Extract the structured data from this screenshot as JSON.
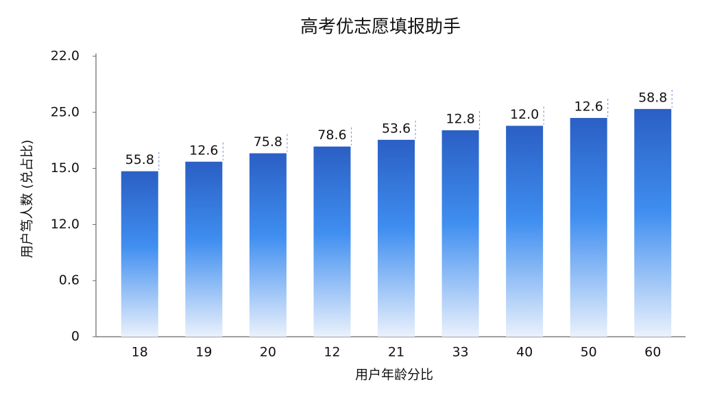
{
  "chart_data": {
    "type": "bar",
    "title": "高考优志愿填报助手",
    "x_label": "用户年龄分比",
    "y_label": "用户笃人数 (兑占比)",
    "categories": [
      "18",
      "19",
      "20",
      "12",
      "21",
      "33",
      "40",
      "50",
      "60"
    ],
    "values": [
      2.95,
      3.12,
      3.27,
      3.39,
      3.51,
      3.68,
      3.76,
      3.9,
      4.06
    ],
    "annotations": [
      "55.8",
      "12.6",
      "75.8",
      "78.6",
      "53.6",
      "12.8",
      "12.0",
      "12.6",
      "58.8"
    ],
    "color": "#2b5fc4",
    "ylim": [
      0,
      5
    ],
    "yticks": [
      {
        "value": 0,
        "label": "0"
      },
      {
        "value": 1,
        "label": "0.6"
      },
      {
        "value": 2,
        "label": "12.0"
      },
      {
        "value": 3,
        "label": "15.0"
      },
      {
        "value": 4,
        "label": "25.0"
      },
      {
        "value": 5,
        "label": "22.0"
      }
    ],
    "grid": false
  }
}
